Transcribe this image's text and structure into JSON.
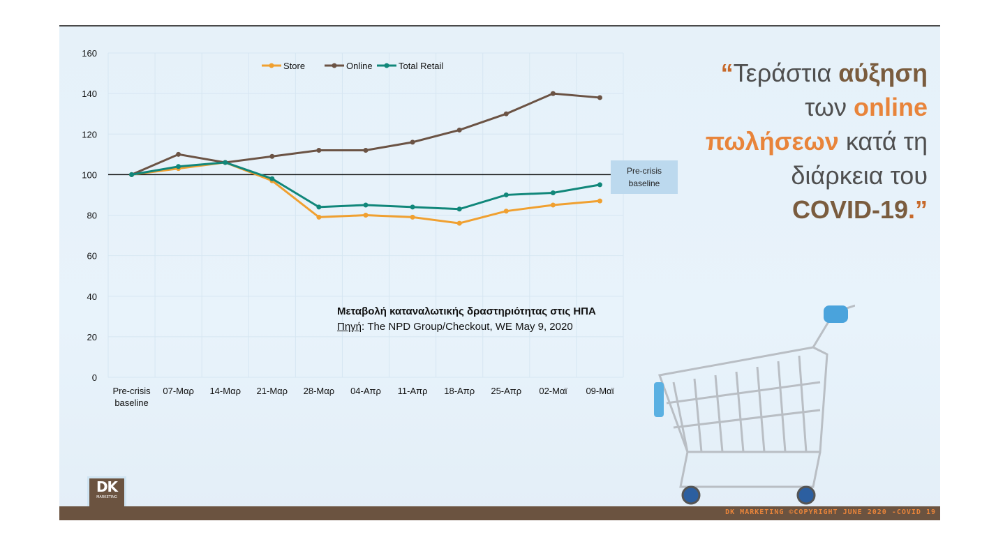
{
  "quote": {
    "open_mark": "“",
    "part1": "Τεράστια ",
    "bold1": "αύξηση",
    "part2": "των ",
    "bold2": "online",
    "bold3": "πωλήσεων",
    "part3": " κατά τη",
    "part4": "διάρκεια του",
    "bold4": "COVID-19",
    "close": ".”"
  },
  "caption": {
    "title": "Μεταβολή καταναλωτικής δραστηριότητας στις ΗΠΑ",
    "source_label": "Πηγή",
    "source_text": ": The NPD Group/Checkout, WE May 9, 2020"
  },
  "baseline_label": {
    "line1": "Pre-crisis",
    "line2": "baseline"
  },
  "logo": {
    "mark": "DK",
    "sub": "MARKETING"
  },
  "footer": "DK MARKETING ©COPYRIGHT JUNE 2020 -COVID 19",
  "chart_data": {
    "type": "line",
    "categories": [
      "Pre-crisis baseline",
      "07-Μαρ",
      "14-Μαρ",
      "21-Μαρ",
      "28-Μαρ",
      "04-Απρ",
      "11-Απρ",
      "18-Απρ",
      "25-Απρ",
      "02-Μαϊ",
      "09-Μαϊ"
    ],
    "series": [
      {
        "name": "Store",
        "color": "#f0a030",
        "values": [
          100,
          103,
          106,
          97,
          79,
          80,
          79,
          76,
          82,
          85,
          87
        ]
      },
      {
        "name": "Online",
        "color": "#6b5344",
        "values": [
          100,
          110,
          106,
          109,
          112,
          112,
          116,
          122,
          130,
          140,
          138
        ]
      },
      {
        "name": "Total Retail",
        "color": "#11877a",
        "values": [
          100,
          104,
          106,
          98,
          84,
          85,
          84,
          83,
          90,
          91,
          95
        ]
      }
    ],
    "yticks": [
      0,
      20,
      40,
      60,
      80,
      100,
      120,
      140,
      160
    ],
    "ylim": [
      0,
      160
    ],
    "reference_line": 100,
    "legend_position": "top-center",
    "grid": true
  }
}
